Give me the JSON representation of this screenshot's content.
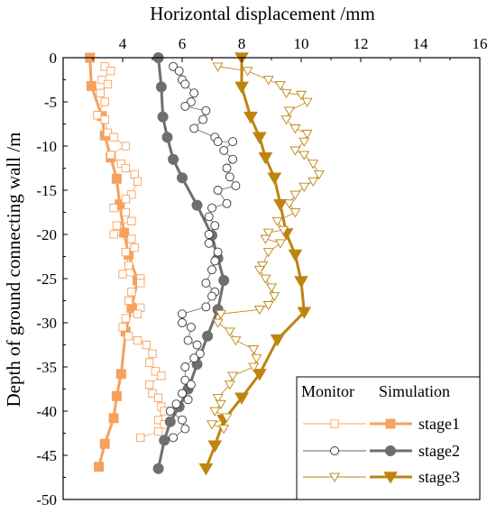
{
  "chart_data": {
    "type": "line",
    "xlabel": "Horizontal displacement /mm",
    "ylabel": "Depth of ground connecting wall /m",
    "xlim": [
      2,
      16
    ],
    "ylim": [
      0,
      -50
    ],
    "x_axis_position": "top",
    "x_ticks": [
      4,
      6,
      8,
      10,
      12,
      14,
      16
    ],
    "y_ticks": [
      0,
      -5,
      -10,
      -15,
      -20,
      -25,
      -30,
      -35,
      -40,
      -45,
      -50
    ],
    "grid": false,
    "legend": {
      "position": "bottom-right",
      "headers": [
        "Monitor",
        "Simulation"
      ],
      "entries": [
        "stage1",
        "stage2",
        "stage3"
      ]
    },
    "colors": {
      "stage1": "#F7A15D",
      "stage2": "#6E6E6E",
      "stage3": "#BE8410"
    },
    "series": [
      {
        "name": "stage1",
        "kind": "Simulation",
        "marker": "filled-square",
        "color": "#F7A15D",
        "points": [
          [
            2.9,
            0
          ],
          [
            2.95,
            -3.2
          ],
          [
            3.3,
            -6.6
          ],
          [
            3.4,
            -8.8
          ],
          [
            3.6,
            -11.3
          ],
          [
            3.8,
            -13.7
          ],
          [
            3.9,
            -16.6
          ],
          [
            4.05,
            -19.8
          ],
          [
            4.2,
            -22.3
          ],
          [
            4.5,
            -25.2
          ],
          [
            4.3,
            -28.3
          ],
          [
            4.1,
            -31
          ],
          [
            3.95,
            -35.8
          ],
          [
            3.8,
            -38.3
          ],
          [
            3.7,
            -40.8
          ],
          [
            3.4,
            -43.7
          ],
          [
            3.2,
            -46.3
          ]
        ]
      },
      {
        "name": "stage1",
        "kind": "Monitor",
        "marker": "open-square",
        "color": "#F7A15D",
        "points": [
          [
            3.4,
            -1
          ],
          [
            3.6,
            -1.5
          ],
          [
            3.3,
            -2.5
          ],
          [
            3.5,
            -3
          ],
          [
            3.25,
            -4
          ],
          [
            3.4,
            -5
          ],
          [
            3.15,
            -6.5
          ],
          [
            3.4,
            -7
          ],
          [
            3.5,
            -8.5
          ],
          [
            3.7,
            -9
          ],
          [
            4.1,
            -10
          ],
          [
            3.6,
            -11
          ],
          [
            3.95,
            -12
          ],
          [
            4.1,
            -12.5
          ],
          [
            4.4,
            -13.2
          ],
          [
            4.5,
            -14
          ],
          [
            4.3,
            -15.5
          ],
          [
            4.1,
            -16
          ],
          [
            3.7,
            -17
          ],
          [
            4.1,
            -17.5
          ],
          [
            4.3,
            -18.5
          ],
          [
            3.8,
            -19
          ],
          [
            3.7,
            -20
          ],
          [
            4.3,
            -20.5
          ],
          [
            4.4,
            -21.5
          ],
          [
            4.1,
            -22
          ],
          [
            4.2,
            -23.5
          ],
          [
            4,
            -24.5
          ],
          [
            4.6,
            -25
          ],
          [
            4.6,
            -25.5
          ],
          [
            4.3,
            -26.5
          ],
          [
            4.2,
            -27.5
          ],
          [
            4.6,
            -28.3
          ],
          [
            4.5,
            -29
          ],
          [
            4.1,
            -29.5
          ],
          [
            4,
            -30.5
          ],
          [
            4.2,
            -31.5
          ],
          [
            4.5,
            -32
          ],
          [
            4.8,
            -32.5
          ],
          [
            5,
            -33.5
          ],
          [
            4.9,
            -34.5
          ],
          [
            5.1,
            -35.5
          ],
          [
            5.3,
            -36
          ],
          [
            4.9,
            -37
          ],
          [
            5,
            -38
          ],
          [
            5.2,
            -38.5
          ],
          [
            5.3,
            -39.5
          ],
          [
            5.4,
            -40
          ],
          [
            5.2,
            -41
          ],
          [
            5.4,
            -41.5
          ],
          [
            5.2,
            -42.3
          ],
          [
            4.6,
            -43
          ]
        ]
      },
      {
        "name": "stage2",
        "kind": "Simulation",
        "marker": "filled-circle",
        "color": "#6E6E6E",
        "points": [
          [
            5.2,
            0
          ],
          [
            5.3,
            -3.3
          ],
          [
            5.35,
            -6.7
          ],
          [
            5.5,
            -9
          ],
          [
            5.7,
            -11.5
          ],
          [
            6,
            -13.6
          ],
          [
            6.5,
            -16.7
          ],
          [
            7,
            -20.1
          ],
          [
            7.2,
            -22.7
          ],
          [
            7.4,
            -25.2
          ],
          [
            7.2,
            -28.5
          ],
          [
            6.85,
            -31.5
          ],
          [
            6.5,
            -34.7
          ],
          [
            6.2,
            -37.5
          ],
          [
            5.9,
            -39.5
          ],
          [
            5.6,
            -41.2
          ],
          [
            5.4,
            -43.3
          ],
          [
            5.2,
            -46.5
          ]
        ]
      },
      {
        "name": "stage2",
        "kind": "Monitor",
        "marker": "open-circle",
        "color": "#6E6E6E",
        "points": [
          [
            5.7,
            -1
          ],
          [
            5.9,
            -1.5
          ],
          [
            6,
            -2.5
          ],
          [
            6.1,
            -3
          ],
          [
            6.4,
            -4
          ],
          [
            6.3,
            -5
          ],
          [
            6.1,
            -5.5
          ],
          [
            6.8,
            -6
          ],
          [
            6.7,
            -7
          ],
          [
            6.4,
            -8
          ],
          [
            7.1,
            -9
          ],
          [
            7.2,
            -9.5
          ],
          [
            7.7,
            -9.5
          ],
          [
            7.4,
            -10.5
          ],
          [
            7.7,
            -11.5
          ],
          [
            7.5,
            -12.5
          ],
          [
            7.6,
            -13.5
          ],
          [
            7.8,
            -14.5
          ],
          [
            7.2,
            -15
          ],
          [
            7.5,
            -16.5
          ],
          [
            7,
            -17
          ],
          [
            6.9,
            -18
          ],
          [
            7.1,
            -19
          ],
          [
            6.9,
            -20
          ],
          [
            6.9,
            -21
          ],
          [
            7.2,
            -22
          ],
          [
            7.1,
            -23
          ],
          [
            7,
            -24
          ],
          [
            6.8,
            -25.5
          ],
          [
            7.1,
            -26.5
          ],
          [
            7,
            -27
          ],
          [
            6.8,
            -28.2
          ],
          [
            6,
            -29
          ],
          [
            6,
            -30
          ],
          [
            6.3,
            -30.5
          ],
          [
            6.2,
            -32
          ],
          [
            6.5,
            -32.5
          ],
          [
            6.6,
            -33.5
          ],
          [
            6.4,
            -34
          ],
          [
            6.1,
            -35
          ],
          [
            6.1,
            -36.5
          ],
          [
            6.3,
            -37
          ],
          [
            6,
            -38
          ],
          [
            6.2,
            -38.7
          ],
          [
            5.8,
            -39.2
          ],
          [
            5.6,
            -40
          ],
          [
            6,
            -41
          ],
          [
            6.1,
            -42
          ],
          [
            5.7,
            -43
          ]
        ]
      },
      {
        "name": "stage3",
        "kind": "Simulation",
        "marker": "filled-triangle",
        "color": "#BE8410",
        "points": [
          [
            8,
            0
          ],
          [
            8,
            -3.3
          ],
          [
            8.3,
            -6.7
          ],
          [
            8.6,
            -9
          ],
          [
            8.8,
            -11.3
          ],
          [
            9.1,
            -13.6
          ],
          [
            9.3,
            -16.6
          ],
          [
            9.5,
            -19.9
          ],
          [
            9.8,
            -22.3
          ],
          [
            10,
            -25.3
          ],
          [
            10.1,
            -28.8
          ],
          [
            9.2,
            -31.9
          ],
          [
            8.6,
            -35.8
          ],
          [
            8,
            -38.5
          ],
          [
            7.4,
            -41
          ],
          [
            7.1,
            -43.9
          ],
          [
            6.8,
            -46.5
          ]
        ]
      },
      {
        "name": "stage3",
        "kind": "Monitor",
        "marker": "open-triangle",
        "color": "#BE8410",
        "points": [
          [
            7.2,
            -1
          ],
          [
            8.2,
            -1.5
          ],
          [
            8.9,
            -2.5
          ],
          [
            9.3,
            -3.1
          ],
          [
            9.5,
            -4
          ],
          [
            10,
            -4.2
          ],
          [
            10.2,
            -5
          ],
          [
            9.6,
            -6
          ],
          [
            9.5,
            -7
          ],
          [
            9.8,
            -8
          ],
          [
            10.2,
            -8.6
          ],
          [
            10.1,
            -9.5
          ],
          [
            9.8,
            -10.5
          ],
          [
            10.1,
            -11
          ],
          [
            10.4,
            -12
          ],
          [
            10.6,
            -13.2
          ],
          [
            10.4,
            -14
          ],
          [
            10.1,
            -14.6
          ],
          [
            9.8,
            -15.5
          ],
          [
            9.6,
            -16.5
          ],
          [
            9.8,
            -17.5
          ],
          [
            9.2,
            -18.5
          ],
          [
            9.4,
            -19.5
          ],
          [
            8.9,
            -19.8
          ],
          [
            8.8,
            -20.5
          ],
          [
            9.3,
            -21
          ],
          [
            8.9,
            -22
          ],
          [
            8.7,
            -23.5
          ],
          [
            8.6,
            -24
          ],
          [
            8.8,
            -25
          ],
          [
            9,
            -26
          ],
          [
            9.1,
            -27
          ],
          [
            8.9,
            -28
          ],
          [
            8.6,
            -28.5
          ],
          [
            7.3,
            -29
          ],
          [
            7.2,
            -30
          ],
          [
            7.6,
            -31
          ],
          [
            7.8,
            -32
          ],
          [
            8.4,
            -33
          ],
          [
            8.5,
            -34
          ],
          [
            8.4,
            -35
          ],
          [
            7.7,
            -36
          ],
          [
            7.6,
            -37
          ],
          [
            7.2,
            -38.5
          ],
          [
            7.3,
            -39.2
          ],
          [
            7.1,
            -40
          ],
          [
            7.5,
            -40.7
          ],
          [
            7,
            -41.5
          ],
          [
            7.4,
            -42
          ]
        ]
      }
    ]
  }
}
